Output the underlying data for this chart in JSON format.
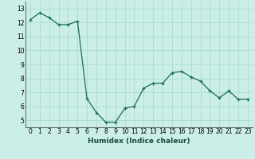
{
  "x": [
    0,
    1,
    2,
    3,
    4,
    5,
    6,
    7,
    8,
    9,
    10,
    11,
    12,
    13,
    14,
    15,
    16,
    17,
    18,
    19,
    20,
    21,
    22,
    23
  ],
  "y": [
    12.2,
    12.7,
    12.35,
    11.85,
    11.85,
    12.1,
    6.55,
    5.55,
    4.85,
    4.85,
    5.85,
    6.0,
    7.3,
    7.65,
    7.65,
    8.4,
    8.5,
    8.1,
    7.8,
    7.1,
    6.6,
    7.1,
    6.5,
    6.5
  ],
  "xlabel": "Humidex (Indice chaleur)",
  "line_color": "#1a6b5a",
  "marker": "+",
  "bg_color": "#cceee8",
  "grid_color": "#aaddcc",
  "plot_bg": "#cceee8",
  "xlim": [
    -0.5,
    23.5
  ],
  "ylim": [
    4.5,
    13.5
  ],
  "yticks": [
    5,
    6,
    7,
    8,
    9,
    10,
    11,
    12,
    13
  ],
  "xticks": [
    0,
    1,
    2,
    3,
    4,
    5,
    6,
    7,
    8,
    9,
    10,
    11,
    12,
    13,
    14,
    15,
    16,
    17,
    18,
    19,
    20,
    21,
    22,
    23
  ],
  "xlabel_fontsize": 6.5,
  "tick_fontsize": 5.5,
  "linewidth": 0.9,
  "markersize": 3.5,
  "markeredgewidth": 0.9
}
